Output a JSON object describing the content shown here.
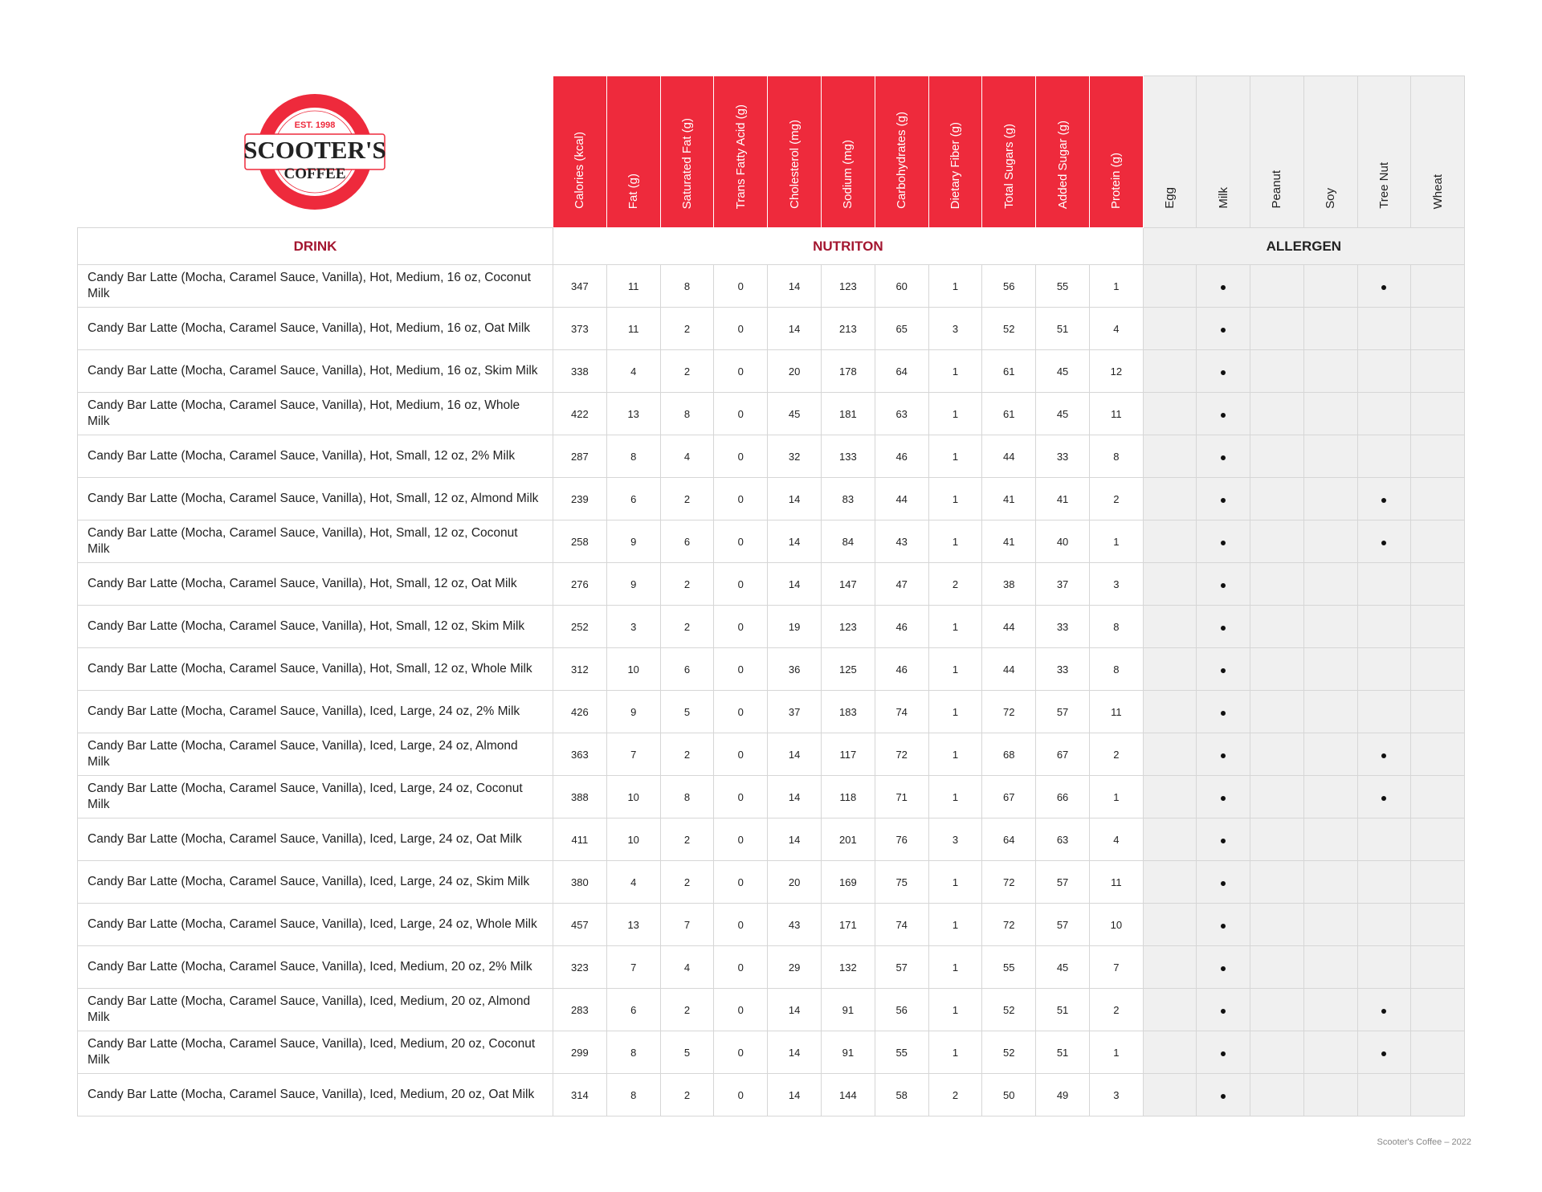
{
  "logo": {
    "text_top": "EST. 1998",
    "text_main": "SCOOTER'S",
    "text_sub": "COFFEE",
    "brand_color": "#ee2a3c"
  },
  "colors": {
    "header_red": "#ee2a3c",
    "section_label": "#a3152f",
    "allergen_bg": "#f0f0f0"
  },
  "sections": {
    "drink": "DRINK",
    "nutrition": "NUTRITON",
    "allergen": "ALLERGEN"
  },
  "nutrition_columns": [
    "Calories (kcal)",
    "Fat (g)",
    "Saturated Fat (g)",
    "Trans Fatty Acid (g)",
    "Cholesterol (mg)",
    "Sodium (mg)",
    "Carbohydrates (g)",
    "Dietary Fiber (g)",
    "Total Sugars (g)",
    "Added Sugar (g)",
    "Protein (g)"
  ],
  "allergen_columns": [
    "Egg",
    "Milk",
    "Peanut",
    "Soy",
    "Tree Nut",
    "Wheat"
  ],
  "rows": [
    {
      "name": "Candy Bar Latte (Mocha, Caramel Sauce, Vanilla), Hot, Medium, 16 oz, Coconut Milk",
      "values": [
        347,
        11,
        8,
        0,
        14,
        123,
        60,
        1,
        56,
        55,
        1
      ],
      "allergens": [
        "Milk",
        "Tree Nut"
      ]
    },
    {
      "name": "Candy Bar Latte (Mocha, Caramel Sauce, Vanilla), Hot, Medium, 16 oz, Oat Milk",
      "values": [
        373,
        11,
        2,
        0,
        14,
        213,
        65,
        3,
        52,
        51,
        4
      ],
      "allergens": [
        "Milk"
      ]
    },
    {
      "name": "Candy Bar Latte (Mocha, Caramel Sauce, Vanilla), Hot, Medium, 16 oz, Skim Milk",
      "values": [
        338,
        4,
        2,
        0,
        20,
        178,
        64,
        1,
        61,
        45,
        12
      ],
      "allergens": [
        "Milk"
      ]
    },
    {
      "name": "Candy Bar Latte (Mocha, Caramel Sauce, Vanilla), Hot, Medium, 16 oz, Whole Milk",
      "values": [
        422,
        13,
        8,
        0,
        45,
        181,
        63,
        1,
        61,
        45,
        11
      ],
      "allergens": [
        "Milk"
      ]
    },
    {
      "name": "Candy Bar Latte (Mocha, Caramel Sauce, Vanilla), Hot, Small, 12 oz, 2% Milk",
      "values": [
        287,
        8,
        4,
        0,
        32,
        133,
        46,
        1,
        44,
        33,
        8
      ],
      "allergens": [
        "Milk"
      ]
    },
    {
      "name": "Candy Bar Latte (Mocha, Caramel Sauce, Vanilla), Hot, Small, 12 oz, Almond Milk",
      "values": [
        239,
        6,
        2,
        0,
        14,
        83,
        44,
        1,
        41,
        41,
        2
      ],
      "allergens": [
        "Milk",
        "Tree Nut"
      ]
    },
    {
      "name": "Candy Bar Latte (Mocha, Caramel Sauce, Vanilla), Hot, Small, 12 oz, Coconut Milk",
      "values": [
        258,
        9,
        6,
        0,
        14,
        84,
        43,
        1,
        41,
        40,
        1
      ],
      "allergens": [
        "Milk",
        "Tree Nut"
      ]
    },
    {
      "name": "Candy Bar Latte (Mocha, Caramel Sauce, Vanilla), Hot, Small, 12 oz, Oat Milk",
      "values": [
        276,
        9,
        2,
        0,
        14,
        147,
        47,
        2,
        38,
        37,
        3
      ],
      "allergens": [
        "Milk"
      ]
    },
    {
      "name": "Candy Bar Latte (Mocha, Caramel Sauce, Vanilla), Hot, Small, 12 oz, Skim Milk",
      "values": [
        252,
        3,
        2,
        0,
        19,
        123,
        46,
        1,
        44,
        33,
        8
      ],
      "allergens": [
        "Milk"
      ]
    },
    {
      "name": "Candy Bar Latte (Mocha, Caramel Sauce, Vanilla), Hot, Small, 12 oz, Whole Milk",
      "values": [
        312,
        10,
        6,
        0,
        36,
        125,
        46,
        1,
        44,
        33,
        8
      ],
      "allergens": [
        "Milk"
      ]
    },
    {
      "name": "Candy Bar Latte (Mocha, Caramel Sauce, Vanilla), Iced, Large, 24 oz, 2% Milk",
      "values": [
        426,
        9,
        5,
        0,
        37,
        183,
        74,
        1,
        72,
        57,
        11
      ],
      "allergens": [
        "Milk"
      ]
    },
    {
      "name": "Candy Bar Latte (Mocha, Caramel Sauce, Vanilla), Iced, Large, 24 oz, Almond Milk",
      "values": [
        363,
        7,
        2,
        0,
        14,
        117,
        72,
        1,
        68,
        67,
        2
      ],
      "allergens": [
        "Milk",
        "Tree Nut"
      ]
    },
    {
      "name": "Candy Bar Latte (Mocha, Caramel Sauce, Vanilla), Iced, Large, 24 oz, Coconut Milk",
      "values": [
        388,
        10,
        8,
        0,
        14,
        118,
        71,
        1,
        67,
        66,
        1
      ],
      "allergens": [
        "Milk",
        "Tree Nut"
      ]
    },
    {
      "name": "Candy Bar Latte (Mocha, Caramel Sauce, Vanilla), Iced, Large, 24 oz, Oat Milk",
      "values": [
        411,
        10,
        2,
        0,
        14,
        201,
        76,
        3,
        64,
        63,
        4
      ],
      "allergens": [
        "Milk"
      ]
    },
    {
      "name": "Candy Bar Latte (Mocha, Caramel Sauce, Vanilla), Iced, Large, 24 oz, Skim Milk",
      "values": [
        380,
        4,
        2,
        0,
        20,
        169,
        75,
        1,
        72,
        57,
        11
      ],
      "allergens": [
        "Milk"
      ]
    },
    {
      "name": "Candy Bar Latte (Mocha, Caramel Sauce, Vanilla), Iced, Large, 24 oz, Whole Milk",
      "values": [
        457,
        13,
        7,
        0,
        43,
        171,
        74,
        1,
        72,
        57,
        10
      ],
      "allergens": [
        "Milk"
      ]
    },
    {
      "name": "Candy Bar Latte (Mocha, Caramel Sauce, Vanilla), Iced, Medium, 20 oz, 2% Milk",
      "values": [
        323,
        7,
        4,
        0,
        29,
        132,
        57,
        1,
        55,
        45,
        7
      ],
      "allergens": [
        "Milk"
      ]
    },
    {
      "name": "Candy Bar Latte (Mocha, Caramel Sauce, Vanilla), Iced, Medium, 20 oz, Almond Milk",
      "values": [
        283,
        6,
        2,
        0,
        14,
        91,
        56,
        1,
        52,
        51,
        2
      ],
      "allergens": [
        "Milk",
        "Tree Nut"
      ]
    },
    {
      "name": "Candy Bar Latte (Mocha, Caramel Sauce, Vanilla), Iced, Medium, 20 oz, Coconut Milk",
      "values": [
        299,
        8,
        5,
        0,
        14,
        91,
        55,
        1,
        52,
        51,
        1
      ],
      "allergens": [
        "Milk",
        "Tree Nut"
      ]
    },
    {
      "name": "Candy Bar Latte (Mocha, Caramel Sauce, Vanilla), Iced, Medium, 20 oz, Oat Milk",
      "values": [
        314,
        8,
        2,
        0,
        14,
        144,
        58,
        2,
        50,
        49,
        3
      ],
      "allergens": [
        "Milk"
      ]
    }
  ],
  "footer": "Scooter's Coffee – 2022"
}
